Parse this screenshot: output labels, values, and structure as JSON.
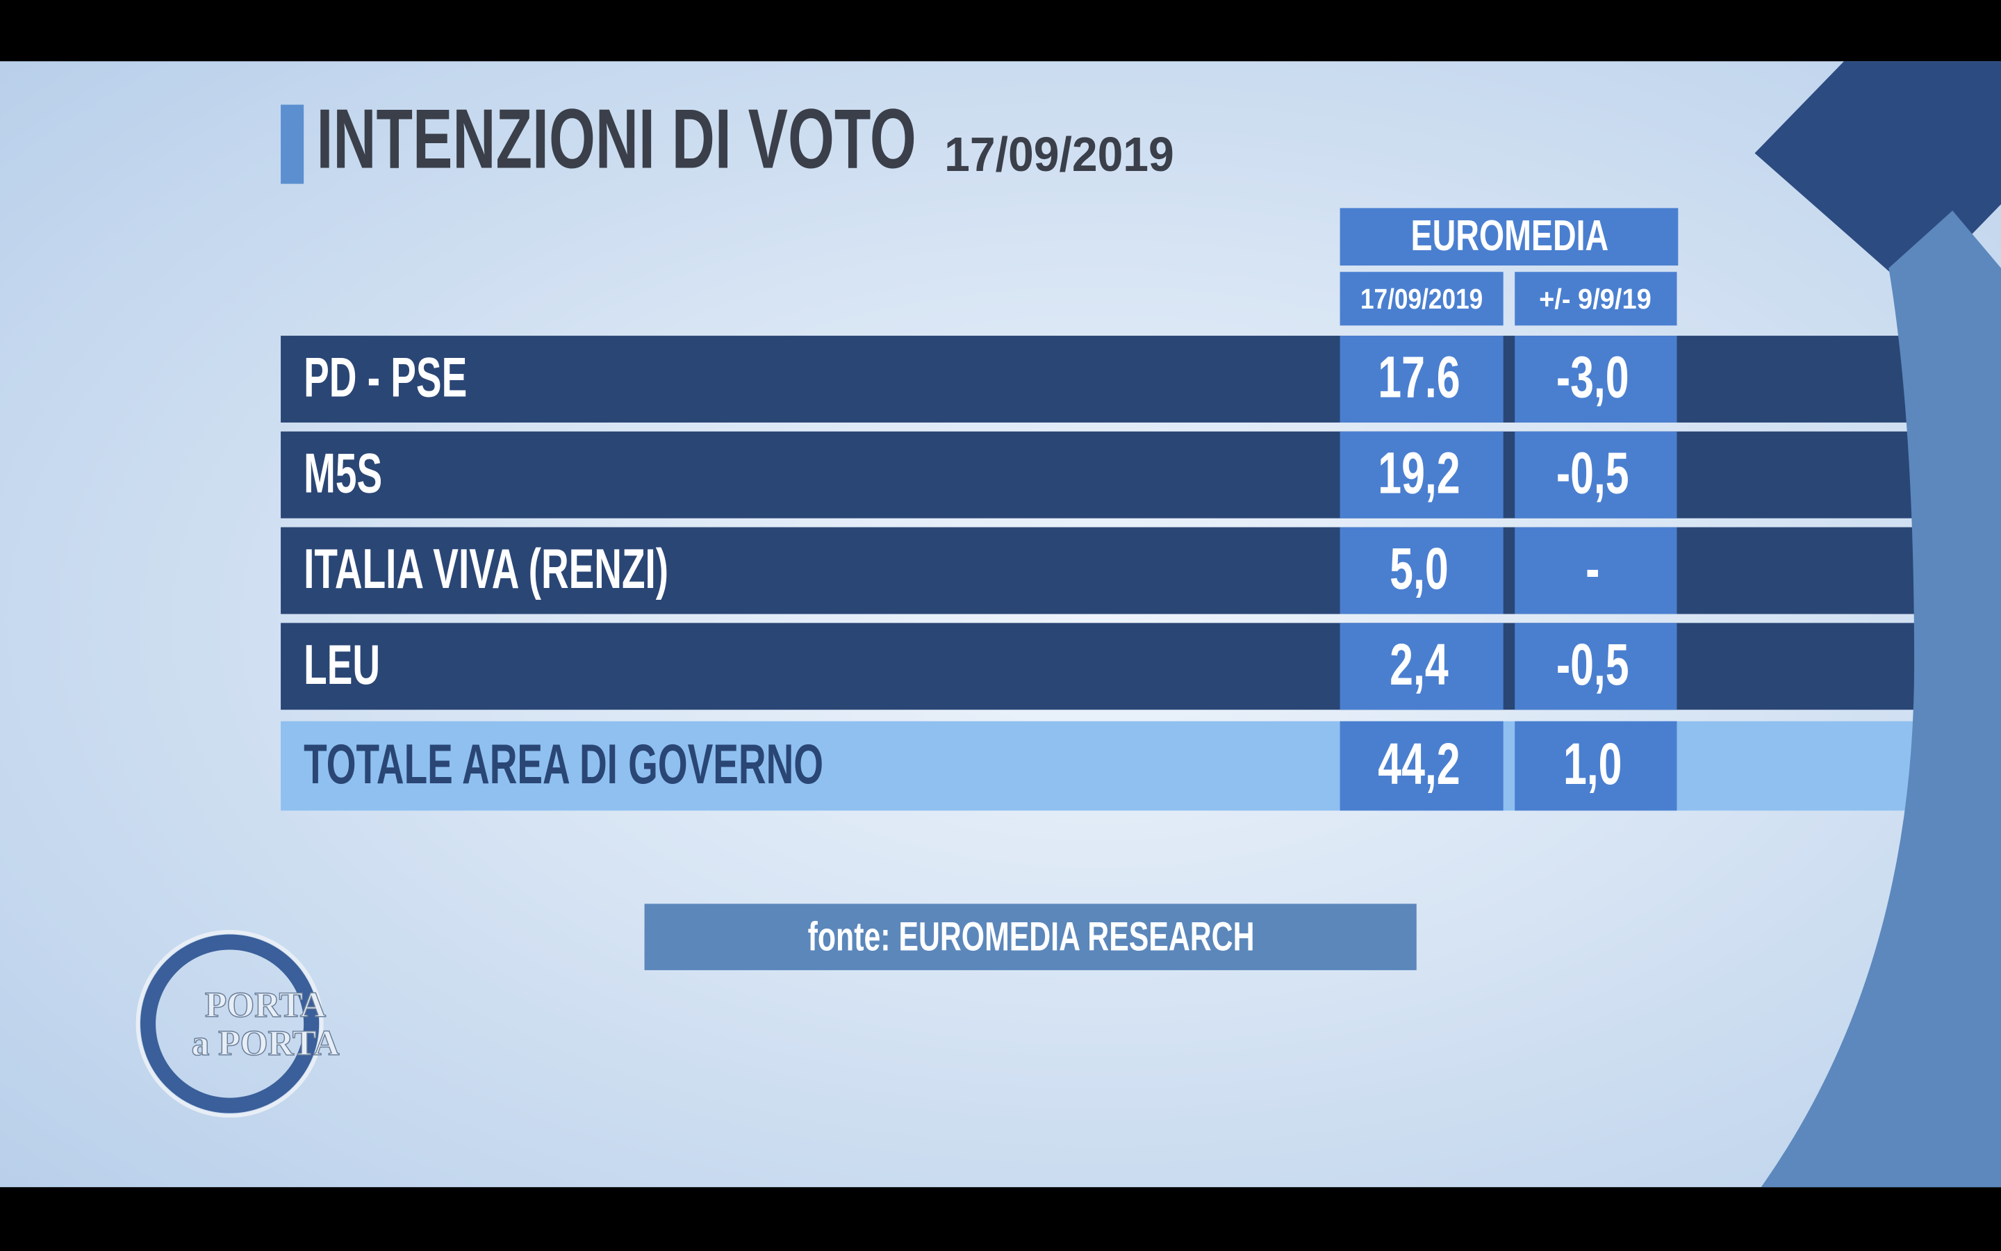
{
  "header": {
    "title": "INTENZIONI DI VOTO",
    "date": "17/09/2019"
  },
  "table": {
    "source": "EUROMEDIA",
    "columns": [
      "17/09/2019",
      "+/- 9/9/19"
    ],
    "rows": [
      [
        "PD - PSE",
        "17.6",
        "-3,0"
      ],
      [
        "M5S",
        "19,2",
        "-0,5"
      ],
      [
        "ITALIA VIVA (RENZI)",
        "5,0",
        "-"
      ],
      [
        "LEU",
        "2,4",
        "-0,5"
      ]
    ],
    "total": [
      "TOTALE AREA DI GOVERNO",
      "44,2",
      "1,0"
    ]
  },
  "footer": {
    "source": "fonte: EUROMEDIA RESEARCH"
  },
  "logo": {
    "line1": "PORTA",
    "line2": "a PORTA"
  }
}
